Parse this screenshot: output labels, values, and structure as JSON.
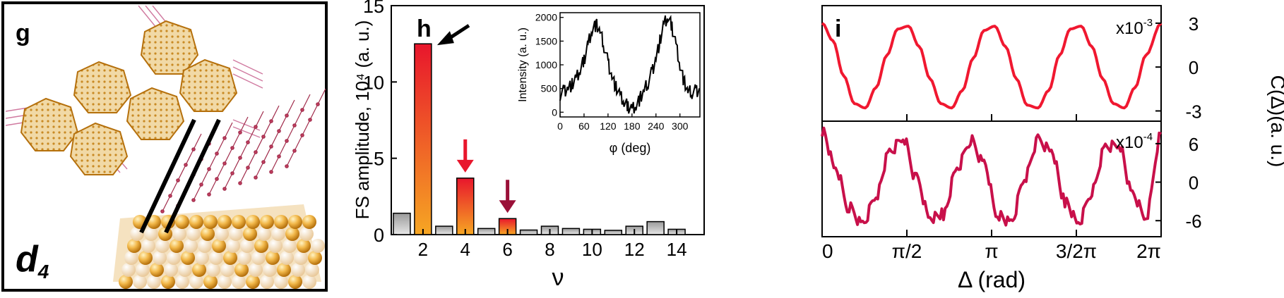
{
  "panel_g": {
    "letter": "g",
    "sample_label": "d",
    "sample_sub": "4"
  },
  "panel_h": {
    "letter": "h"
  },
  "panel_i": {
    "letter": "i"
  },
  "chart_data": [
    {
      "type": "bar",
      "panel": "h",
      "title": "",
      "xlabel": "ν",
      "ylabel": "FS amplitude, 10⁴ (a. u.)",
      "ylim": [
        0,
        15
      ],
      "xlim": [
        0.5,
        15.3
      ],
      "yticks": [
        "0",
        "5",
        "10",
        "15"
      ],
      "xticks": [
        "2",
        "4",
        "6",
        "8",
        "10",
        "12",
        "14"
      ],
      "x": [
        1,
        2,
        3,
        4,
        5,
        6,
        7,
        8,
        9,
        10,
        11,
        12,
        13,
        14,
        15
      ],
      "values": [
        1.4,
        12.5,
        0.55,
        3.7,
        0.4,
        1.05,
        0.3,
        0.55,
        0.4,
        0.35,
        0.28,
        0.55,
        0.85,
        0.35,
        0.0
      ],
      "highlighted": [
        2,
        4,
        6
      ],
      "colors": {
        "highlight_top": "#e8162c",
        "highlight_bottom": "#f6a623",
        "plain": "#b8b8b8"
      },
      "arrows": [
        {
          "x": 2,
          "color": "#000000"
        },
        {
          "x": 4,
          "color": "#e8162c"
        },
        {
          "x": 6,
          "color": "#9a1038"
        }
      ]
    },
    {
      "type": "line",
      "panel": "h-inset",
      "xlabel": "φ (deg)",
      "ylabel": "Intensity (a. u.)",
      "xlim": [
        0,
        350
      ],
      "ylim": [
        -100,
        2100
      ],
      "xticks": [
        "0",
        "60",
        "120",
        "180",
        "240",
        "300"
      ],
      "yticks": [
        "0",
        "500",
        "1000",
        "1500",
        "2000"
      ],
      "x": [
        0,
        10,
        20,
        30,
        40,
        50,
        60,
        70,
        80,
        90,
        100,
        110,
        120,
        130,
        140,
        150,
        160,
        170,
        180,
        190,
        200,
        210,
        220,
        230,
        240,
        250,
        260,
        270,
        280,
        290,
        300,
        310,
        320,
        330,
        340,
        350
      ],
      "values": [
        380,
        450,
        520,
        580,
        700,
        870,
        1100,
        1450,
        1750,
        1850,
        1700,
        1400,
        1050,
        750,
        520,
        350,
        200,
        120,
        80,
        150,
        280,
        450,
        620,
        850,
        1150,
        1500,
        1850,
        2000,
        1800,
        1450,
        1000,
        650,
        430,
        420,
        450,
        480
      ],
      "color": "#000000"
    },
    {
      "type": "line",
      "panel": "i-top",
      "xlabel": "Δ (rad)",
      "ylabel": "C(Δ)(a. u.)",
      "multiplier": "x10",
      "multiplier_exp": "-3",
      "yticks": [
        "3",
        "0",
        "-3"
      ],
      "ylim": [
        -3.7,
        4.2
      ],
      "xticks": [
        "0",
        "π/2",
        "π",
        "3/2π",
        "2π"
      ],
      "xlim": [
        0,
        6.283
      ],
      "x": [
        0,
        0.2,
        0.4,
        0.6,
        0.8,
        1.0,
        1.2,
        1.4,
        1.6,
        1.8,
        2.0,
        2.2,
        2.4,
        2.6,
        2.8,
        3.0,
        3.2,
        3.4,
        3.6,
        3.8,
        4.0,
        4.2,
        4.4,
        4.6,
        4.8,
        5.0,
        5.2,
        5.4,
        5.6,
        5.8,
        6.0,
        6.283
      ],
      "values": [
        3.0,
        1.8,
        -0.6,
        -2.5,
        -2.8,
        -1.4,
        0.8,
        2.6,
        2.8,
        1.4,
        -0.8,
        -2.5,
        -2.8,
        -1.6,
        0.6,
        2.5,
        2.8,
        1.4,
        -0.8,
        -2.6,
        -2.8,
        -1.6,
        0.8,
        2.6,
        2.8,
        1.4,
        -0.8,
        -2.5,
        -2.8,
        -1.4,
        0.8,
        3.0
      ],
      "color": "#f01830"
    },
    {
      "type": "line",
      "panel": "i-bottom",
      "xlabel": "Δ (rad)",
      "ylabel": "C(Δ)(a. u.)",
      "multiplier": "x10",
      "multiplier_exp": "-4",
      "yticks": [
        "6",
        "0",
        "-6"
      ],
      "ylim": [
        -8.5,
        9.5
      ],
      "xticks": [
        "0",
        "π/2",
        "π",
        "3/2π",
        "2π"
      ],
      "xlim": [
        0,
        6.283
      ],
      "x": [
        0,
        0.25,
        0.5,
        0.75,
        1.0,
        1.25,
        1.5,
        1.75,
        2.0,
        2.25,
        2.5,
        2.75,
        3.0,
        3.25,
        3.5,
        3.75,
        4.0,
        4.25,
        4.5,
        4.75,
        5.0,
        5.25,
        5.5,
        5.75,
        6.0,
        6.283
      ],
      "values": [
        8.0,
        2.0,
        -4.0,
        -6.5,
        -2.0,
        4.5,
        6.8,
        0.5,
        -5.5,
        -5.0,
        2.0,
        6.5,
        3.0,
        -5.0,
        -6.5,
        0.5,
        6.5,
        5.0,
        -3.0,
        -6.5,
        -1.5,
        5.5,
        6.0,
        -2.0,
        -5.5,
        7.5
      ],
      "color": "#c8104a"
    }
  ]
}
